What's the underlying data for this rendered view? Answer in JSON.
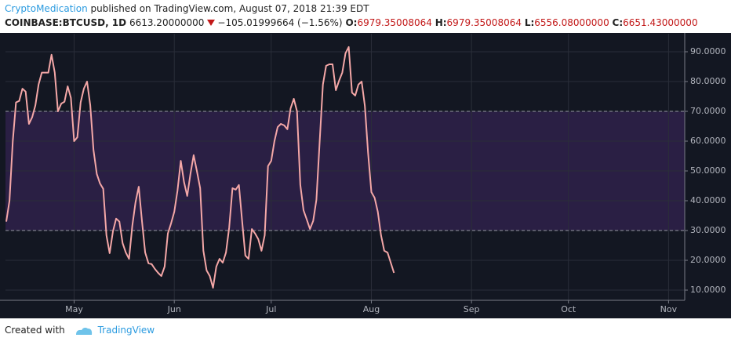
{
  "header": {
    "author": "CryptoMedication",
    "published": "published on TradingView.com, August 07, 2018 21:39 EDT",
    "symbol": "COINBASE:BTCUSD, 1D",
    "price": "6613.20000000",
    "change": "−105.01999664 (−1.56%)",
    "open_label": "O:",
    "open": "6979.35008064",
    "high_label": "H:",
    "high": "6979.35008064",
    "low_label": "L:",
    "low": "6556.08000000",
    "close_label": "C:",
    "close": "6651.43000000"
  },
  "footer": {
    "created": "Created with",
    "brand": "TradingView"
  },
  "chart_data": {
    "type": "line",
    "series": [
      {
        "color": "#f4a7a7",
        "values": [
          33,
          40,
          60,
          73,
          73.5,
          77.6,
          76.6,
          65.8,
          68,
          72,
          79,
          83,
          83,
          83,
          89,
          83,
          70,
          72.6,
          73.2,
          78.4,
          74.5,
          60,
          61.3,
          73,
          77.6,
          80,
          72,
          57,
          49,
          45.8,
          44,
          28.4,
          22.4,
          29.7,
          34,
          33,
          25.8,
          22.6,
          20.5,
          31.6,
          39.5,
          44.7,
          33.2,
          22.6,
          19,
          18.7,
          17.1,
          15.8,
          14.7,
          17.9,
          29,
          32.4,
          36.3,
          43.4,
          53.4,
          46.3,
          41.6,
          49,
          55.3,
          50,
          44.2,
          23.2,
          16.6,
          14.7,
          10.8,
          17.9,
          20.5,
          19.2,
          22.6,
          31,
          44.2,
          43.7,
          45.3,
          33.2,
          21.6,
          20.5,
          30.5,
          29,
          27.1,
          23.2,
          28.4,
          51.6,
          53.4,
          60,
          64.7,
          65.8,
          65.3,
          64,
          71,
          74.2,
          70,
          45.3,
          36.8,
          33.7,
          30.5,
          33.2,
          40.3,
          60,
          79,
          85.3,
          85.8,
          85.8,
          77.1,
          80.3,
          83,
          89.5,
          91.6,
          76.3,
          75.3,
          79,
          80,
          71.8,
          56,
          42.9,
          41,
          36.3,
          28.4,
          23.2,
          22.6,
          19.2,
          15.8
        ]
      }
    ],
    "xlim": [
      -0.25,
      210
    ],
    "xticks": [
      {
        "value": 21,
        "label": "May"
      },
      {
        "value": 52,
        "label": "Jun"
      },
      {
        "value": 82,
        "label": "Jul"
      },
      {
        "value": 113,
        "label": "Aug"
      },
      {
        "value": 144,
        "label": "Sep"
      },
      {
        "value": 174,
        "label": "Oct"
      },
      {
        "value": 205,
        "label": "Nov"
      }
    ],
    "ylim": [
      6.58,
      96.05
    ],
    "yticks": [
      {
        "value": 10,
        "label": "10.0000"
      },
      {
        "value": 20,
        "label": "20.0000"
      },
      {
        "value": 30,
        "label": "30.0000"
      },
      {
        "value": 40,
        "label": "40.0000"
      },
      {
        "value": 50,
        "label": "50.0000"
      },
      {
        "value": 60,
        "label": "60.0000"
      },
      {
        "value": 70,
        "label": "70.0000"
      },
      {
        "value": 80,
        "label": "80.0000"
      },
      {
        "value": 90,
        "label": "90.0000"
      }
    ],
    "band": {
      "lower": 30,
      "upper": 70,
      "color": "#2a1f44"
    },
    "grid": true
  }
}
